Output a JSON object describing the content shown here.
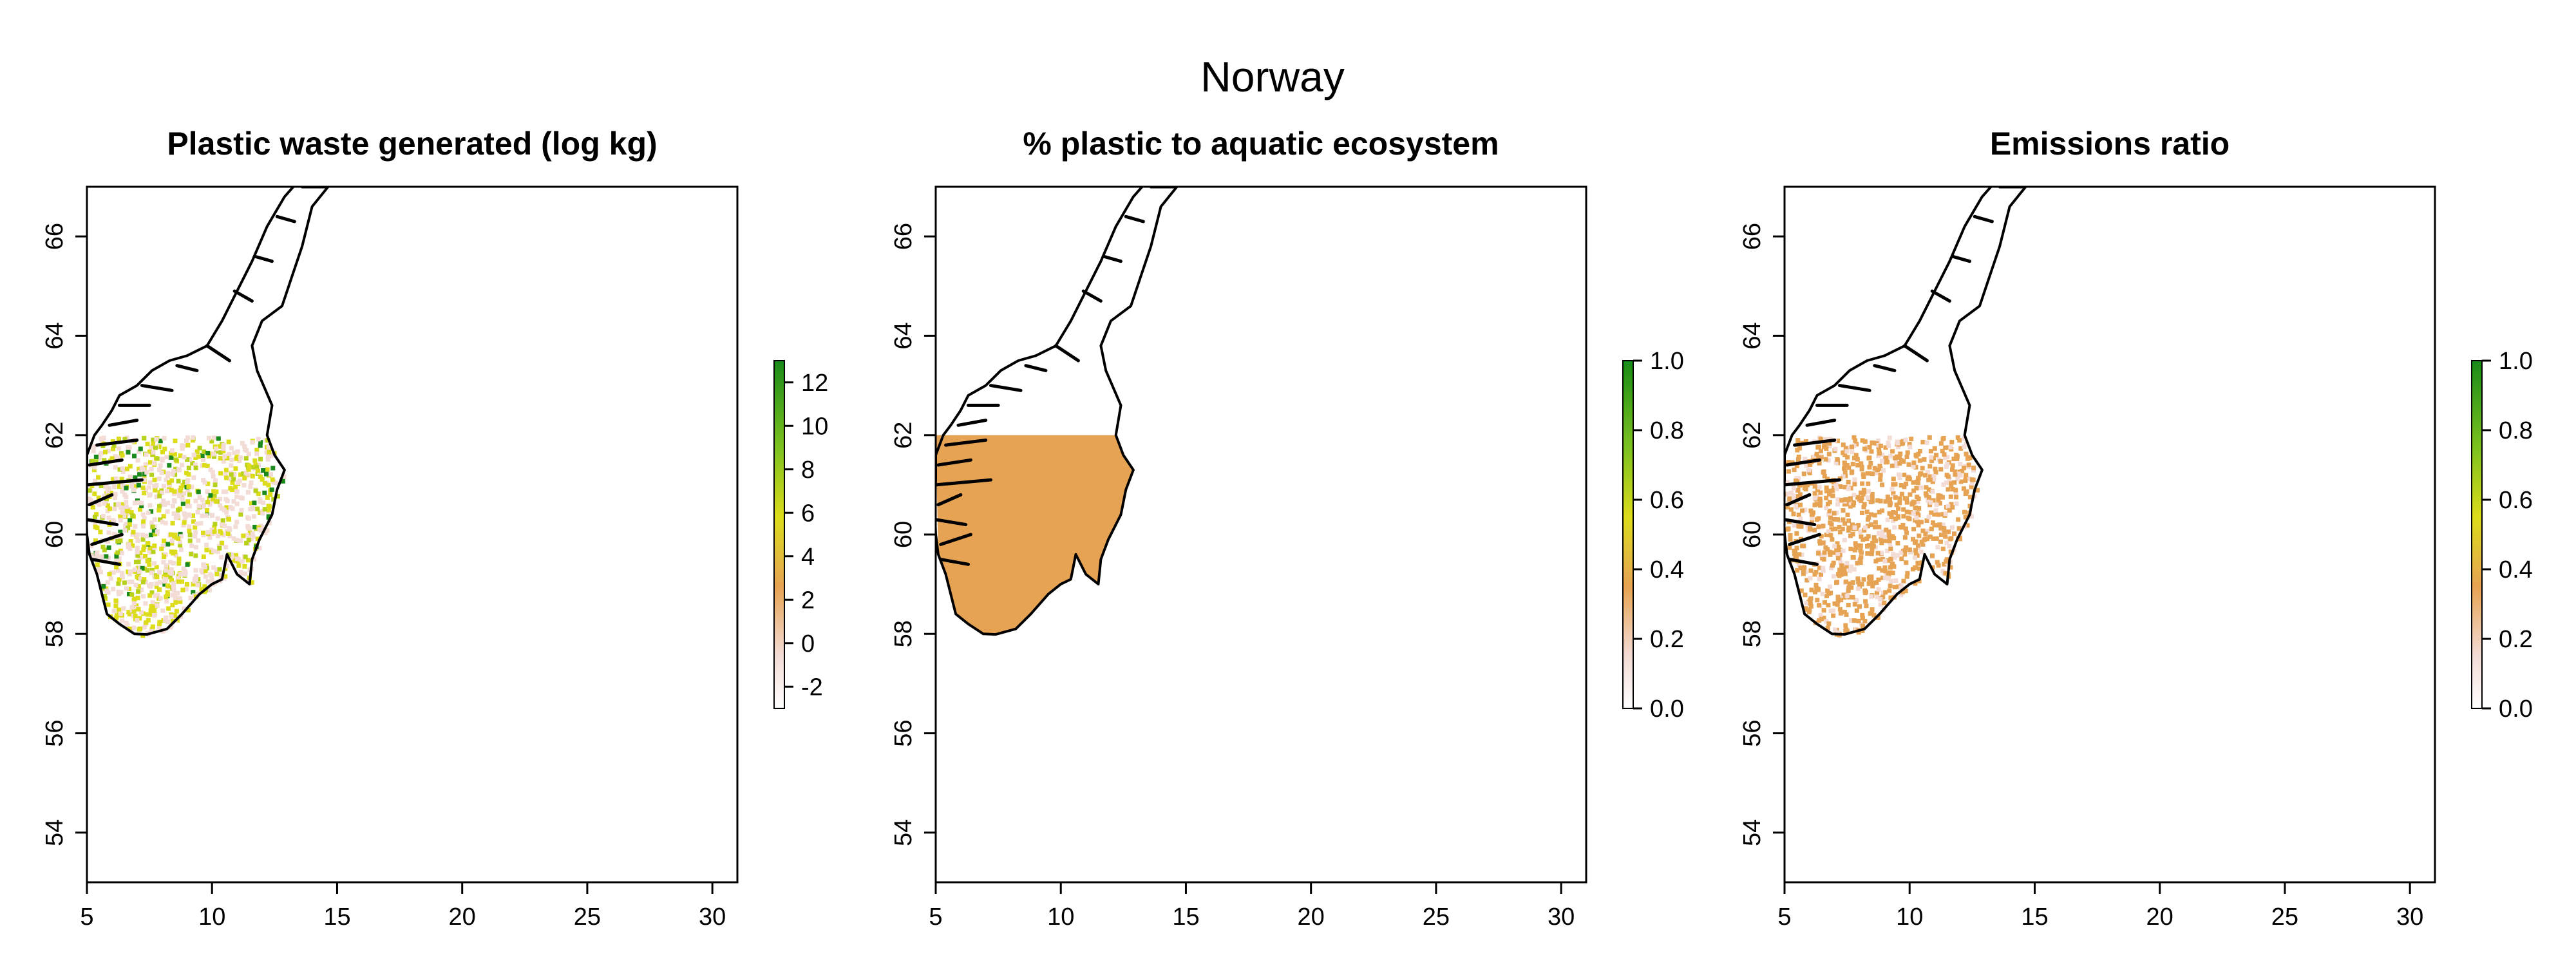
{
  "figure": {
    "title": "Norway",
    "panels": [
      {
        "title": "Plastic waste generated (log kg)",
        "xlim": [
          5,
          31
        ],
        "ylim": [
          53,
          67
        ],
        "x_ticks": [
          "5",
          "10",
          "15",
          "20",
          "25",
          "30"
        ],
        "y_ticks": [
          "54",
          "56",
          "58",
          "60",
          "62",
          "64",
          "66"
        ],
        "colorbar": {
          "ticks": [
            "-2",
            "0",
            "2",
            "4",
            "6",
            "8",
            "10",
            "12"
          ],
          "min": -3,
          "max": 13
        },
        "fill": "sparse-gradient"
      },
      {
        "title": "% plastic to aquatic ecosystem",
        "xlim": [
          5,
          31
        ],
        "ylim": [
          53,
          67
        ],
        "x_ticks": [
          "5",
          "10",
          "15",
          "20",
          "25",
          "30"
        ],
        "y_ticks": [
          "54",
          "56",
          "58",
          "60",
          "62",
          "64",
          "66"
        ],
        "colorbar": {
          "ticks": [
            "0.0",
            "0.2",
            "0.4",
            "0.6",
            "0.8",
            "1.0"
          ],
          "min": 0,
          "max": 1
        },
        "fill": "solid"
      },
      {
        "title": "Emissions ratio",
        "xlim": [
          5,
          31
        ],
        "ylim": [
          53,
          67
        ],
        "x_ticks": [
          "5",
          "10",
          "15",
          "20",
          "25",
          "30"
        ],
        "y_ticks": [
          "54",
          "56",
          "58",
          "60",
          "62",
          "64",
          "66"
        ],
        "colorbar": {
          "ticks": [
            "0.0",
            "0.2",
            "0.4",
            "0.6",
            "0.8",
            "1.0"
          ],
          "min": 0,
          "max": 1
        },
        "fill": "sparse-uniform"
      }
    ],
    "colors": {
      "raster_low": "#f3dcd6",
      "raster_mid": "#e6a354",
      "raster_yellow": "#dcdc1a",
      "raster_green": "#1a8a1a",
      "solid_fill": "#e6a354",
      "outline": "#000000"
    }
  }
}
